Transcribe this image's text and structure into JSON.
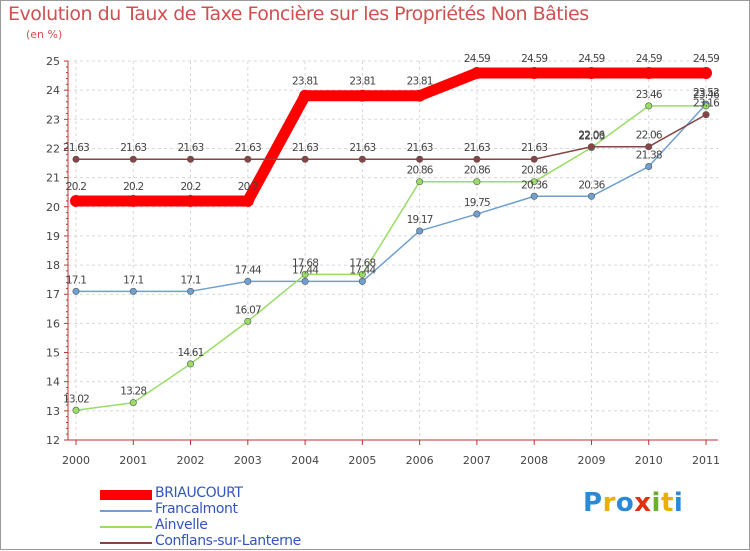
{
  "title": "Evolution du Taux de Taxe Foncière sur les Propriétés Non Bâties",
  "subtitle": "(en %)",
  "logo": {
    "letters": [
      "P",
      "r",
      "o",
      "x",
      "i",
      "t",
      "i"
    ],
    "colors": [
      "#2a8ad8",
      "#e8b000",
      "#2a8ad8",
      "#e03010",
      "#6ab02a",
      "#e8b000",
      "#2a8ad8"
    ]
  },
  "chart_data": {
    "type": "line",
    "title": "Evolution du Taux de Taxe Foncière sur les Propriétés Non Bâties",
    "ylabel": "(en %)",
    "ylim": [
      12,
      25
    ],
    "yticks": [
      "12",
      "13",
      "14",
      "15",
      "16",
      "17",
      "18",
      "19",
      "20",
      "21",
      "22",
      "23",
      "24",
      "25"
    ],
    "categories": [
      "2000",
      "2001",
      "2002",
      "2003",
      "2004",
      "2005",
      "2006",
      "2007",
      "2008",
      "2009",
      "2010",
      "2011"
    ],
    "grid": true,
    "series": [
      {
        "name": "BRIAUCOURT",
        "color": "#ff0000",
        "values": [
          20.2,
          20.2,
          20.2,
          20.2,
          23.81,
          23.81,
          23.81,
          24.59,
          24.59,
          24.59,
          24.59,
          24.59
        ],
        "labels": [
          "20.2",
          "20.2",
          "20.2",
          "20.2",
          "23.81",
          "23.81",
          "23.81",
          "24.59",
          "24.59",
          "24.59",
          "24.59",
          "24.59"
        ]
      },
      {
        "name": "Francalmont",
        "color": "#6fa0cf",
        "values": [
          17.1,
          17.1,
          17.1,
          17.44,
          17.44,
          17.44,
          19.17,
          19.75,
          20.36,
          20.36,
          21.38,
          23.52
        ],
        "labels": [
          "17.1",
          "17.1",
          "17.1",
          "17.44",
          "17.44",
          "17.44",
          "19.17",
          "19.75",
          "20.36",
          "20.36",
          "21.38",
          "23.52"
        ]
      },
      {
        "name": "Ainvelle",
        "color": "#99dd66",
        "values": [
          13.02,
          13.28,
          14.61,
          16.07,
          17.68,
          17.68,
          20.86,
          20.86,
          20.86,
          22.03,
          23.46,
          23.46
        ],
        "labels": [
          "13.02",
          "13.28",
          "14.61",
          "16.07",
          "17.68",
          "17.68",
          "20.86",
          "20.86",
          "20.86",
          "22.03",
          "23.46",
          "23.46"
        ]
      },
      {
        "name": "Conflans-sur-Lanterne",
        "color": "#884444",
        "values": [
          21.63,
          21.63,
          21.63,
          21.63,
          21.63,
          21.63,
          21.63,
          21.63,
          21.63,
          22.06,
          22.06,
          23.16
        ],
        "labels": [
          "21.63",
          "21.63",
          "21.63",
          "21.63",
          "21.63",
          "21.63",
          "21.63",
          "21.63",
          "21.63",
          "22.06",
          "22.06",
          "23.16"
        ]
      }
    ],
    "legend": "bottom-left"
  }
}
